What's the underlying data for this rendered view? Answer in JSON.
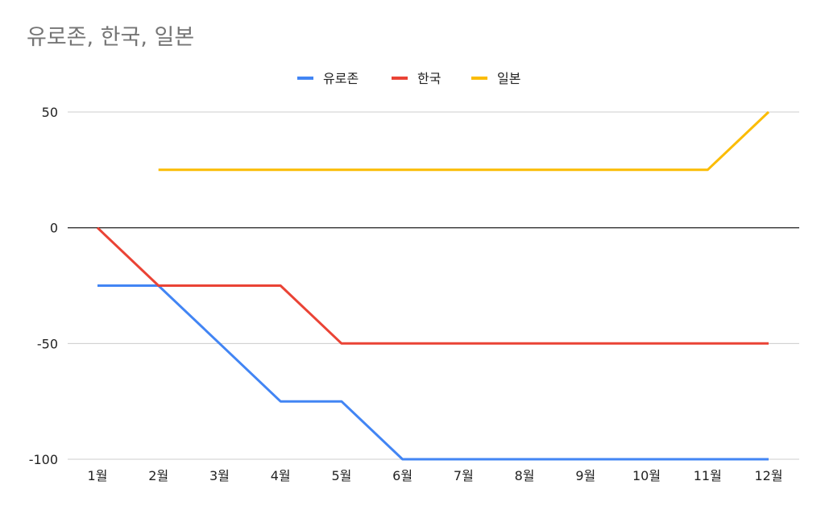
{
  "chart_data": {
    "type": "line",
    "title": "유로존, 한국, 일본",
    "categories": [
      "1월",
      "2월",
      "3월",
      "4월",
      "5월",
      "6월",
      "7월",
      "8월",
      "9월",
      "10월",
      "11월",
      "12월"
    ],
    "series": [
      {
        "name": "유로존",
        "color": "#4285f4",
        "values": [
          -25,
          -25,
          -50,
          -75,
          -75,
          -100,
          -100,
          -100,
          -100,
          -100,
          -100,
          -100
        ]
      },
      {
        "name": "한국",
        "color": "#ea4335",
        "values": [
          0,
          -25,
          -25,
          -25,
          -50,
          -50,
          -50,
          -50,
          -50,
          -50,
          -50,
          -50
        ]
      },
      {
        "name": "일본",
        "color": "#fbbc04",
        "values": [
          null,
          25,
          25,
          25,
          25,
          25,
          25,
          25,
          25,
          25,
          25,
          50
        ]
      }
    ],
    "yticks": [
      50,
      0,
      -50,
      -100
    ],
    "ylim": [
      -100,
      50
    ],
    "grid": true,
    "legend_position": "top"
  }
}
